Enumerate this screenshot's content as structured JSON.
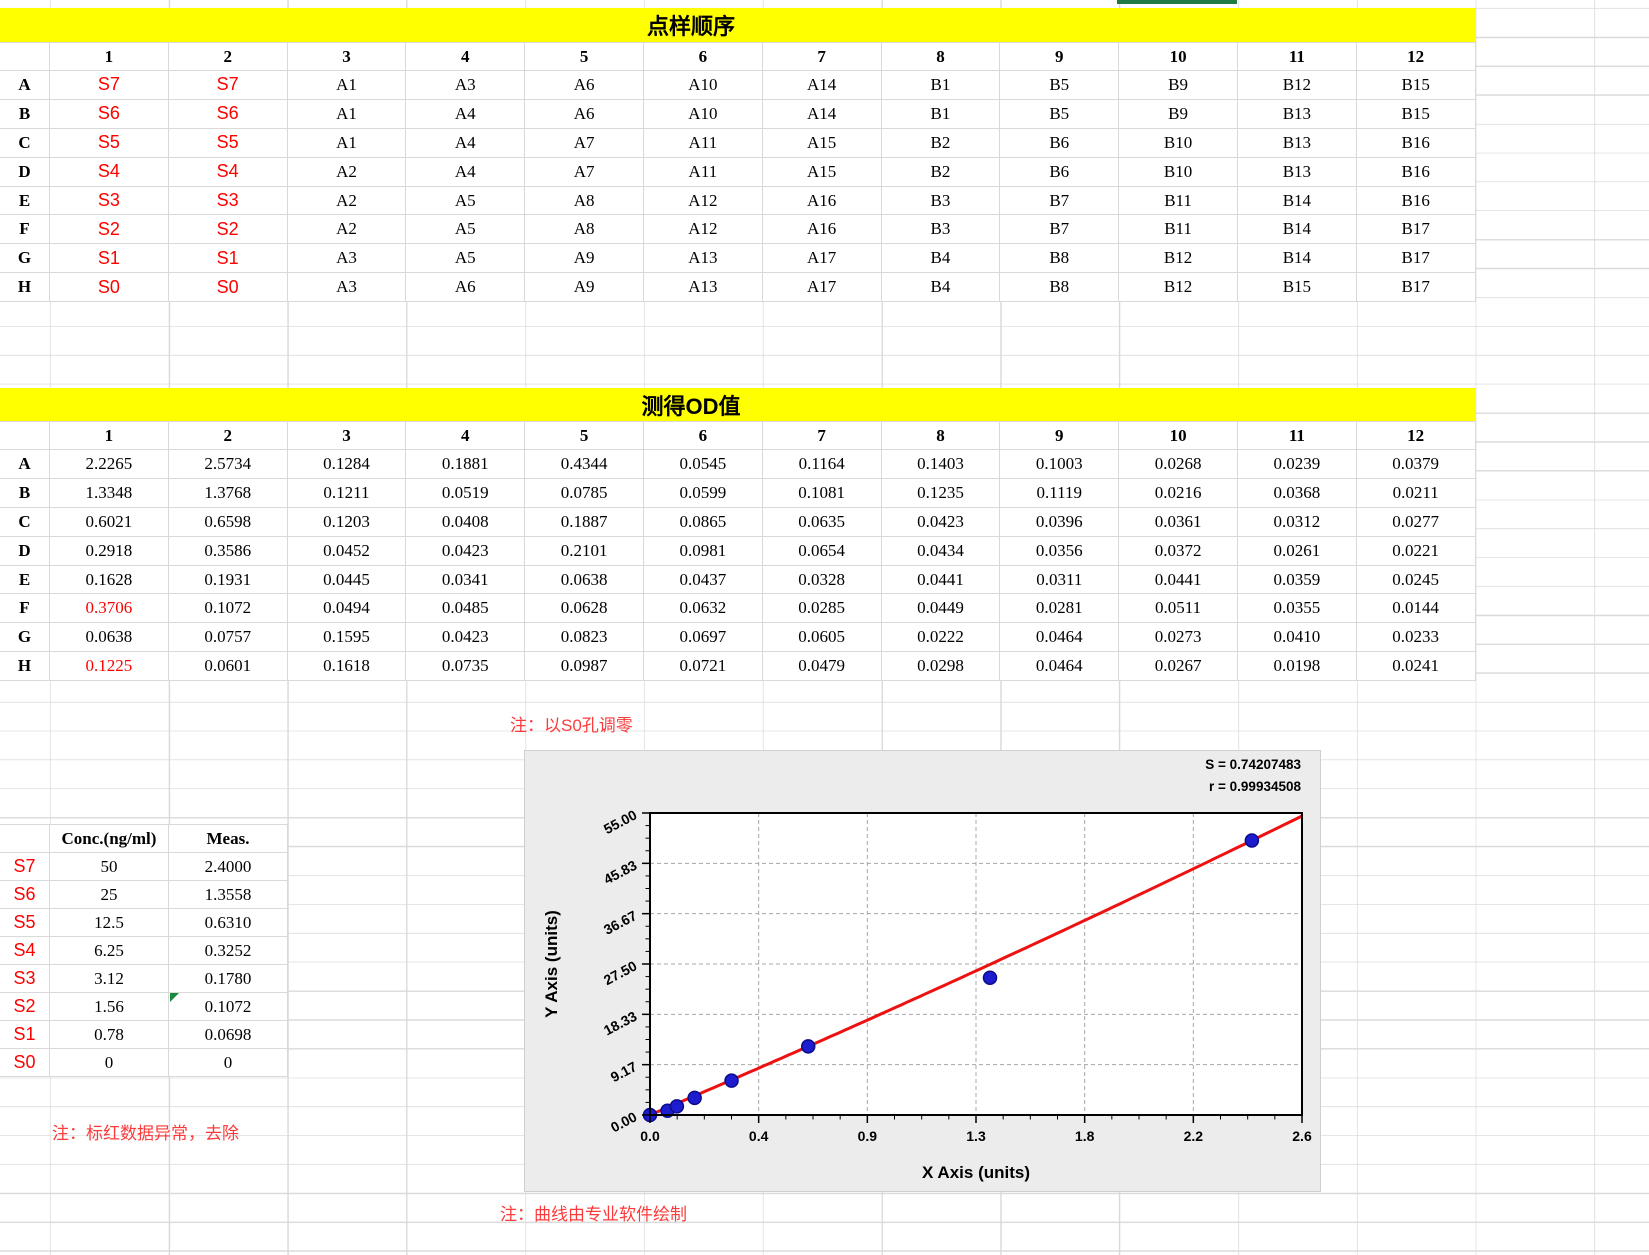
{
  "sheet": {
    "titles": {
      "order": "点样顺序",
      "od": "测得OD值"
    },
    "col_headers": [
      "1",
      "2",
      "3",
      "4",
      "5",
      "6",
      "7",
      "8",
      "9",
      "10",
      "11",
      "12"
    ],
    "row_headers": [
      "A",
      "B",
      "C",
      "D",
      "E",
      "F",
      "G",
      "H"
    ],
    "order_table": {
      "rows": [
        [
          "S7",
          "S7",
          "A1",
          "A3",
          "A6",
          "A10",
          "A14",
          "B1",
          "B5",
          "B9",
          "B12",
          "B15"
        ],
        [
          "S6",
          "S6",
          "A1",
          "A4",
          "A6",
          "A10",
          "A14",
          "B1",
          "B5",
          "B9",
          "B13",
          "B15"
        ],
        [
          "S5",
          "S5",
          "A1",
          "A4",
          "A7",
          "A11",
          "A15",
          "B2",
          "B6",
          "B10",
          "B13",
          "B16"
        ],
        [
          "S4",
          "S4",
          "A2",
          "A4",
          "A7",
          "A11",
          "A15",
          "B2",
          "B6",
          "B10",
          "B13",
          "B16"
        ],
        [
          "S3",
          "S3",
          "A2",
          "A5",
          "A8",
          "A12",
          "A16",
          "B3",
          "B7",
          "B11",
          "B14",
          "B16"
        ],
        [
          "S2",
          "S2",
          "A2",
          "A5",
          "A8",
          "A12",
          "A16",
          "B3",
          "B7",
          "B11",
          "B14",
          "B17"
        ],
        [
          "S1",
          "S1",
          "A3",
          "A5",
          "A9",
          "A13",
          "A17",
          "B4",
          "B8",
          "B12",
          "B14",
          "B17"
        ],
        [
          "S0",
          "S0",
          "A3",
          "A6",
          "A9",
          "A13",
          "A17",
          "B4",
          "B8",
          "B12",
          "B15",
          "B17"
        ]
      ],
      "red_columns": [
        0,
        1
      ]
    },
    "od_table": {
      "rows": [
        [
          "2.2265",
          "2.5734",
          "0.1284",
          "0.1881",
          "0.4344",
          "0.0545",
          "0.1164",
          "0.1403",
          "0.1003",
          "0.0268",
          "0.0239",
          "0.0379"
        ],
        [
          "1.3348",
          "1.3768",
          "0.1211",
          "0.0519",
          "0.0785",
          "0.0599",
          "0.1081",
          "0.1235",
          "0.1119",
          "0.0216",
          "0.0368",
          "0.0211"
        ],
        [
          "0.6021",
          "0.6598",
          "0.1203",
          "0.0408",
          "0.1887",
          "0.0865",
          "0.0635",
          "0.0423",
          "0.0396",
          "0.0361",
          "0.0312",
          "0.0277"
        ],
        [
          "0.2918",
          "0.3586",
          "0.0452",
          "0.0423",
          "0.2101",
          "0.0981",
          "0.0654",
          "0.0434",
          "0.0356",
          "0.0372",
          "0.0261",
          "0.0221"
        ],
        [
          "0.1628",
          "0.1931",
          "0.0445",
          "0.0341",
          "0.0638",
          "0.0437",
          "0.0328",
          "0.0441",
          "0.0311",
          "0.0441",
          "0.0359",
          "0.0245"
        ],
        [
          "0.3706",
          "0.1072",
          "0.0494",
          "0.0485",
          "0.0628",
          "0.0632",
          "0.0285",
          "0.0449",
          "0.0281",
          "0.0511",
          "0.0355",
          "0.0144"
        ],
        [
          "0.0638",
          "0.0757",
          "0.1595",
          "0.0423",
          "0.0823",
          "0.0697",
          "0.0605",
          "0.0222",
          "0.0464",
          "0.0273",
          "0.0410",
          "0.0233"
        ],
        [
          "0.1225",
          "0.0601",
          "0.1618",
          "0.0735",
          "0.0987",
          "0.0721",
          "0.0479",
          "0.0298",
          "0.0464",
          "0.0267",
          "0.0198",
          "0.0241"
        ]
      ],
      "red_cells": [
        [
          5,
          0
        ],
        [
          7,
          0
        ]
      ]
    },
    "standards": {
      "col_headers": [
        "Conc.(ng/ml)",
        "Meas."
      ],
      "row_labels": [
        "S7",
        "S6",
        "S5",
        "S4",
        "S3",
        "S2",
        "S1",
        "S0"
      ],
      "conc": [
        "50",
        "25",
        "12.5",
        "6.25",
        "3.12",
        "1.56",
        "0.78",
        "0"
      ],
      "meas": [
        "2.4000",
        "1.3558",
        "0.6310",
        "0.3252",
        "0.1780",
        "0.1072",
        "0.0698",
        "0"
      ]
    },
    "notes": {
      "zero": "注：以S0孔调零",
      "outlier": "注：标红数据异常，去除",
      "software": "注：曲线由专业软件绘制"
    }
  },
  "chart_data": {
    "type": "scatter",
    "xlabel": "X Axis (units)",
    "ylabel": "Y Axis (units)",
    "xlim": [
      0,
      2.6
    ],
    "ylim": [
      0,
      55
    ],
    "x_tick_labels": [
      "0.0",
      "0.4",
      "0.9",
      "1.3",
      "1.8",
      "2.2",
      "2.6"
    ],
    "y_tick_labels": [
      "0.00",
      "9.17",
      "18.33",
      "27.50",
      "36.67",
      "45.83",
      "55.00"
    ],
    "grid": "dashed",
    "legend": "none",
    "points": {
      "x": [
        0,
        0.0698,
        0.1072,
        0.178,
        0.3252,
        0.631,
        1.3558,
        2.4
      ],
      "y": [
        0,
        0.78,
        1.56,
        3.12,
        6.25,
        12.5,
        25,
        50
      ]
    },
    "fit_curve": {
      "type": "quadratic",
      "c1": 19.44,
      "c2": 0.579
    },
    "stats": {
      "s_label": "S = 0.74207483",
      "r_label": "r = 0.99934508"
    },
    "colors": {
      "curve": "#ee1111",
      "point_fill": "#1d1dcf",
      "point_edge": "#0b0b8a"
    }
  }
}
